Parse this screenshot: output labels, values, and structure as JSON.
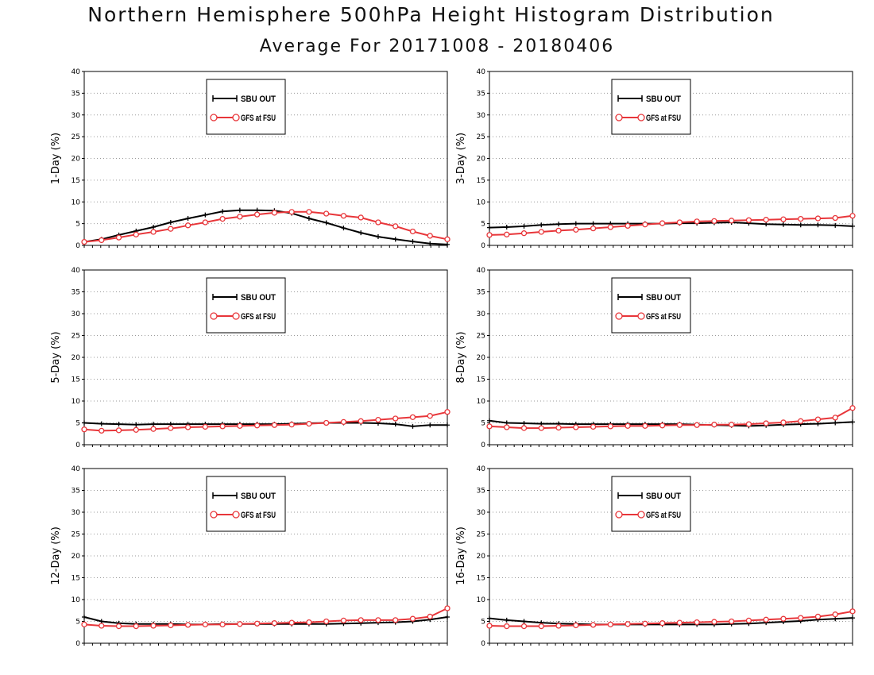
{
  "title": "Northern Hemisphere 500hPa Height Histogram Distribution",
  "subtitle": "Average For 20171008 - 20180406",
  "colors": {
    "series1": "#000000",
    "series2": "#e8363a",
    "grid": "#9a9a9a"
  },
  "chart_data": [
    {
      "type": "line",
      "ylabel": "1-Day (%)",
      "ylim": [
        0,
        40
      ],
      "yticks": [
        "0",
        "5",
        "10",
        "15",
        "20",
        "25",
        "30",
        "35",
        "40"
      ],
      "grid": true,
      "legend_position": "top-center",
      "x": [
        1,
        2,
        3,
        4,
        5,
        6,
        7,
        8,
        9,
        10,
        11,
        12,
        13,
        14,
        15,
        16,
        17,
        18,
        19,
        20,
        21,
        22
      ],
      "series": [
        {
          "name": "SBU OUT",
          "values": [
            0.8,
            1.4,
            2.4,
            3.3,
            4.2,
            5.3,
            6.2,
            7.0,
            7.8,
            8.1,
            8.1,
            8.0,
            7.4,
            6.2,
            5.2,
            4.0,
            2.9,
            2.0,
            1.4,
            0.9,
            0.4,
            0.2
          ]
        },
        {
          "name": "GFS at FSU",
          "values": [
            0.8,
            1.2,
            1.8,
            2.5,
            3.1,
            3.8,
            4.6,
            5.3,
            6.1,
            6.6,
            7.1,
            7.5,
            7.7,
            7.7,
            7.3,
            6.8,
            6.4,
            5.3,
            4.4,
            3.2,
            2.2,
            1.4
          ]
        }
      ]
    },
    {
      "type": "line",
      "ylabel": "3-Day (%)",
      "ylim": [
        0,
        40
      ],
      "yticks": [
        "0",
        "5",
        "10",
        "15",
        "20",
        "25",
        "30",
        "35",
        "40"
      ],
      "grid": true,
      "legend_position": "top-center",
      "x": [
        1,
        2,
        3,
        4,
        5,
        6,
        7,
        8,
        9,
        10,
        11,
        12,
        13,
        14,
        15,
        16,
        17,
        18,
        19,
        20,
        21,
        22
      ],
      "series": [
        {
          "name": "SBU OUT",
          "values": [
            4.1,
            4.2,
            4.4,
            4.7,
            4.9,
            5.0,
            5.0,
            5.0,
            5.0,
            5.0,
            5.0,
            5.1,
            5.1,
            5.2,
            5.3,
            5.1,
            4.9,
            4.8,
            4.7,
            4.7,
            4.6,
            4.4
          ]
        },
        {
          "name": "GFS at FSU",
          "values": [
            2.4,
            2.5,
            2.8,
            3.1,
            3.4,
            3.6,
            3.9,
            4.2,
            4.5,
            4.8,
            5.1,
            5.3,
            5.5,
            5.6,
            5.7,
            5.8,
            5.9,
            6.0,
            6.1,
            6.2,
            6.3,
            6.8
          ]
        }
      ]
    },
    {
      "type": "line",
      "ylabel": "5-Day (%)",
      "ylim": [
        0,
        40
      ],
      "yticks": [
        "0",
        "5",
        "10",
        "15",
        "20",
        "25",
        "30",
        "35",
        "40"
      ],
      "grid": true,
      "legend_position": "top-center",
      "x": [
        1,
        2,
        3,
        4,
        5,
        6,
        7,
        8,
        9,
        10,
        11,
        12,
        13,
        14,
        15,
        16,
        17,
        18,
        19,
        20,
        21,
        22
      ],
      "series": [
        {
          "name": "SBU OUT",
          "values": [
            5.0,
            4.8,
            4.7,
            4.6,
            4.7,
            4.7,
            4.7,
            4.7,
            4.7,
            4.7,
            4.7,
            4.7,
            4.8,
            4.9,
            5.0,
            5.0,
            5.0,
            4.9,
            4.7,
            4.2,
            4.5,
            4.5
          ]
        },
        {
          "name": "GFS at FSU",
          "values": [
            3.5,
            3.2,
            3.3,
            3.4,
            3.6,
            3.8,
            4.0,
            4.1,
            4.2,
            4.3,
            4.4,
            4.5,
            4.6,
            4.8,
            5.0,
            5.2,
            5.4,
            5.7,
            6.0,
            6.3,
            6.6,
            7.5
          ]
        }
      ]
    },
    {
      "type": "line",
      "ylabel": "8-Day (%)",
      "ylim": [
        0,
        40
      ],
      "yticks": [
        "0",
        "5",
        "10",
        "15",
        "20",
        "25",
        "30",
        "35",
        "40"
      ],
      "grid": true,
      "legend_position": "top-center",
      "x": [
        1,
        2,
        3,
        4,
        5,
        6,
        7,
        8,
        9,
        10,
        11,
        12,
        13,
        14,
        15,
        16,
        17,
        18,
        19,
        20,
        21,
        22
      ],
      "series": [
        {
          "name": "SBU OUT",
          "values": [
            5.5,
            5.0,
            4.9,
            4.8,
            4.8,
            4.7,
            4.7,
            4.7,
            4.7,
            4.7,
            4.7,
            4.7,
            4.6,
            4.5,
            4.4,
            4.3,
            4.4,
            4.6,
            4.7,
            4.8,
            5.0,
            5.2
          ]
        },
        {
          "name": "GFS at FSU",
          "values": [
            4.2,
            4.0,
            3.8,
            3.8,
            3.9,
            4.0,
            4.1,
            4.2,
            4.3,
            4.3,
            4.4,
            4.5,
            4.5,
            4.6,
            4.6,
            4.7,
            4.9,
            5.1,
            5.4,
            5.8,
            6.2,
            8.4
          ]
        }
      ]
    },
    {
      "type": "line",
      "ylabel": "12-Day (%)",
      "ylim": [
        0,
        40
      ],
      "yticks": [
        "0",
        "5",
        "10",
        "15",
        "20",
        "25",
        "30",
        "35",
        "40"
      ],
      "grid": true,
      "legend_position": "top-center",
      "x": [
        1,
        2,
        3,
        4,
        5,
        6,
        7,
        8,
        9,
        10,
        11,
        12,
        13,
        14,
        15,
        16,
        17,
        18,
        19,
        20,
        21,
        22
      ],
      "series": [
        {
          "name": "SBU OUT",
          "values": [
            6.0,
            5.0,
            4.6,
            4.4,
            4.4,
            4.4,
            4.3,
            4.3,
            4.4,
            4.4,
            4.4,
            4.4,
            4.4,
            4.4,
            4.4,
            4.5,
            4.6,
            4.7,
            4.8,
            5.0,
            5.4,
            6.0
          ]
        },
        {
          "name": "GFS at FSU",
          "values": [
            4.3,
            4.0,
            3.9,
            3.9,
            4.0,
            4.1,
            4.2,
            4.3,
            4.3,
            4.4,
            4.5,
            4.6,
            4.7,
            4.8,
            5.0,
            5.2,
            5.3,
            5.3,
            5.3,
            5.6,
            6.1,
            8.0
          ]
        }
      ]
    },
    {
      "type": "line",
      "ylabel": "16-Day (%)",
      "ylim": [
        0,
        40
      ],
      "yticks": [
        "0",
        "5",
        "10",
        "15",
        "20",
        "25",
        "30",
        "35",
        "40"
      ],
      "grid": true,
      "legend_position": "top-center",
      "x": [
        1,
        2,
        3,
        4,
        5,
        6,
        7,
        8,
        9,
        10,
        11,
        12,
        13,
        14,
        15,
        16,
        17,
        18,
        19,
        20,
        21,
        22
      ],
      "series": [
        {
          "name": "SBU OUT",
          "values": [
            5.7,
            5.3,
            5.0,
            4.7,
            4.5,
            4.4,
            4.3,
            4.3,
            4.3,
            4.3,
            4.3,
            4.3,
            4.3,
            4.3,
            4.4,
            4.5,
            4.7,
            4.9,
            5.1,
            5.4,
            5.6,
            5.8
          ]
        },
        {
          "name": "GFS at FSU",
          "values": [
            4.0,
            3.9,
            3.9,
            3.9,
            4.0,
            4.1,
            4.2,
            4.3,
            4.4,
            4.5,
            4.6,
            4.7,
            4.8,
            4.9,
            5.0,
            5.2,
            5.4,
            5.6,
            5.8,
            6.1,
            6.6,
            7.3
          ]
        }
      ]
    }
  ]
}
